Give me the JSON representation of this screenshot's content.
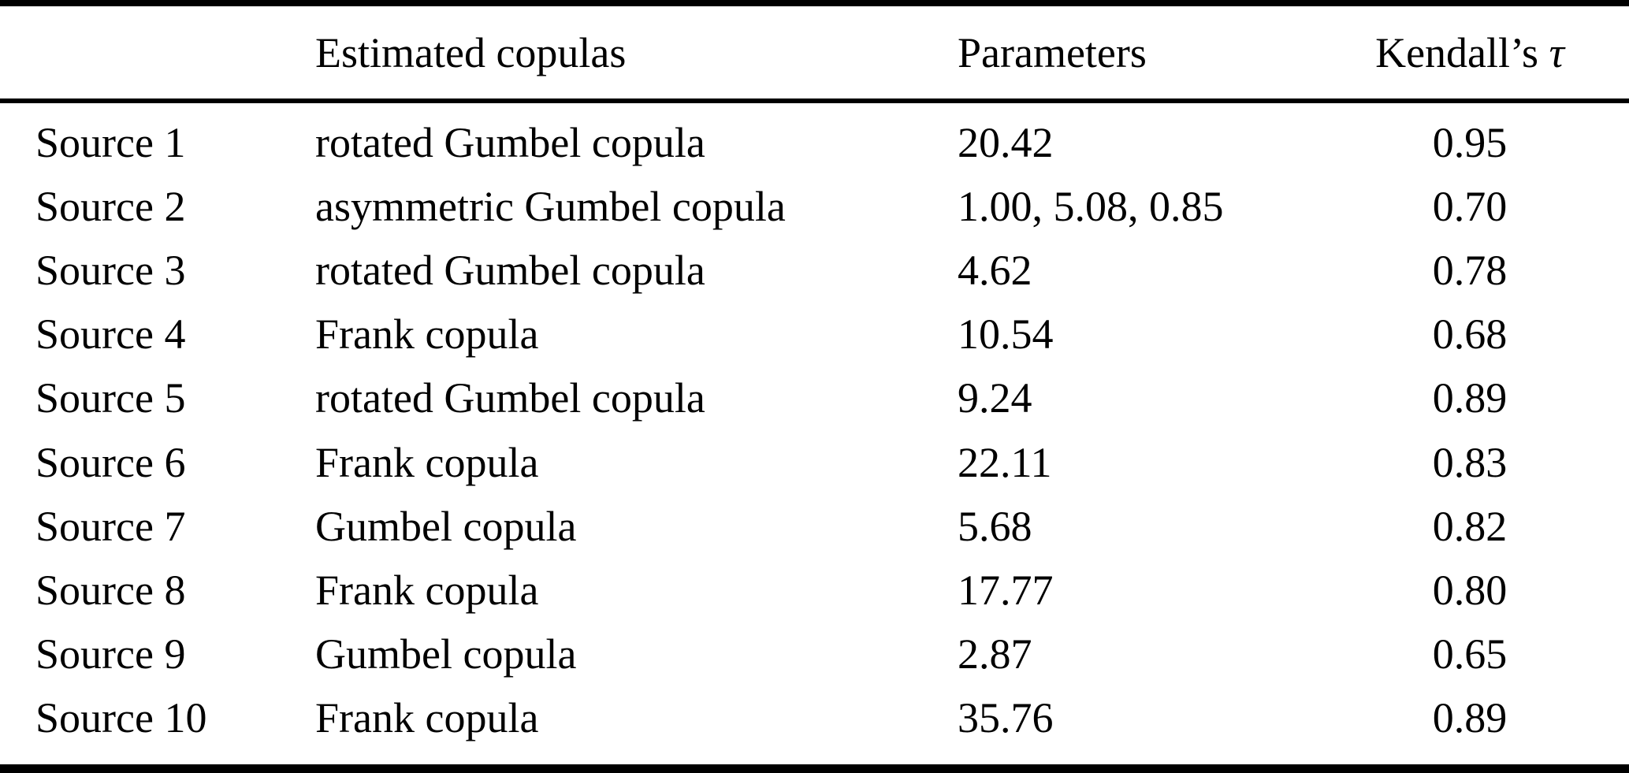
{
  "page": {
    "background_color": "#ffffff",
    "text_color": "#000000",
    "rule_color": "#000000"
  },
  "table": {
    "headers": {
      "source": "",
      "copulas": "Estimated copulas",
      "parameters": "Parameters",
      "kendall_prefix": "Kendall’s",
      "kendall_tau_symbol": "τ"
    },
    "rows": [
      {
        "source": "Source 1",
        "copula": "rotated Gumbel copula",
        "parameters": "20.42",
        "tau": "0.95"
      },
      {
        "source": "Source 2",
        "copula": "asymmetric Gumbel copula",
        "parameters": "1.00, 5.08, 0.85",
        "tau": "0.70"
      },
      {
        "source": "Source 3",
        "copula": "rotated Gumbel copula",
        "parameters": "4.62",
        "tau": "0.78"
      },
      {
        "source": "Source 4",
        "copula": "Frank copula",
        "parameters": "10.54",
        "tau": "0.68"
      },
      {
        "source": "Source 5",
        "copula": "rotated Gumbel copula",
        "parameters": "9.24",
        "tau": "0.89"
      },
      {
        "source": "Source 6",
        "copula": "Frank copula",
        "parameters": "22.11",
        "tau": "0.83"
      },
      {
        "source": "Source 7",
        "copula": "Gumbel copula",
        "parameters": "5.68",
        "tau": "0.82"
      },
      {
        "source": "Source 8",
        "copula": "Frank copula",
        "parameters": "17.77",
        "tau": "0.80"
      },
      {
        "source": "Source 9",
        "copula": "Gumbel copula",
        "parameters": "2.87",
        "tau": "0.65"
      },
      {
        "source": "Source 10",
        "copula": "Frank copula",
        "parameters": "35.76",
        "tau": "0.89"
      }
    ]
  }
}
